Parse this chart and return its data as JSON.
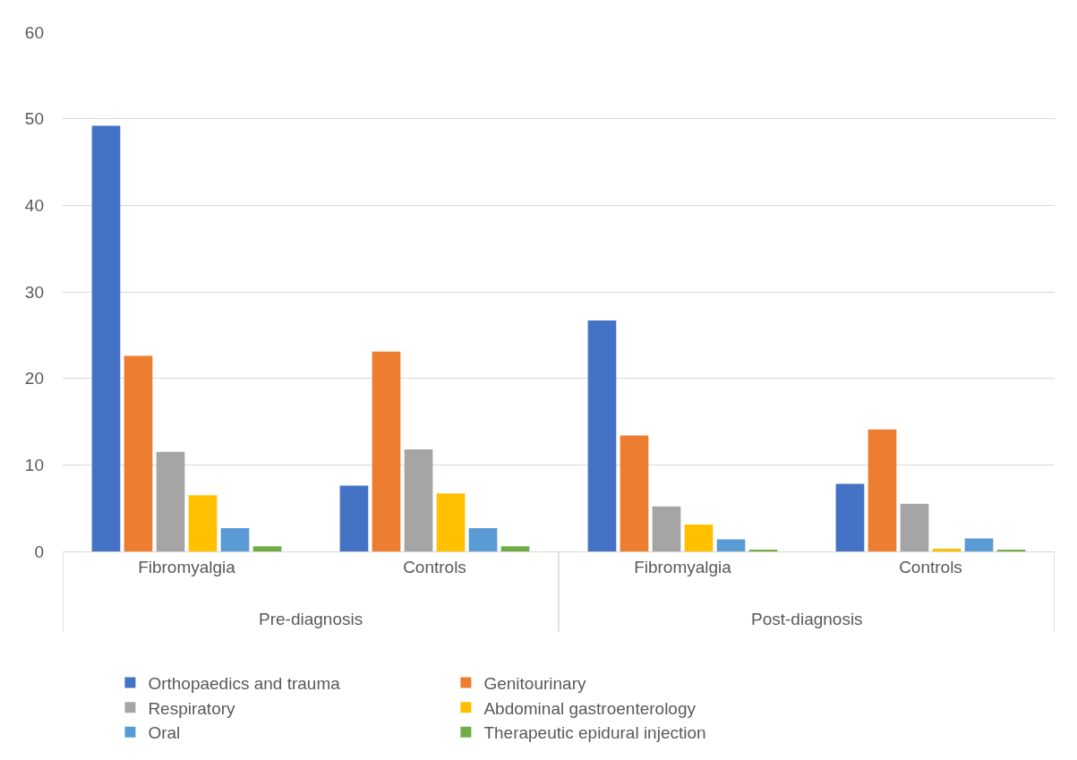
{
  "chart_data": {
    "type": "bar",
    "categories": [
      "Fibromyalgia",
      "Controls",
      "Fibromyalgia",
      "Controls"
    ],
    "series": [
      {
        "name": "Orthopaedics and trauma",
        "color": "#4472c4",
        "values": [
          49.2,
          7.6,
          26.7,
          7.8
        ]
      },
      {
        "name": "Genitourinary",
        "color": "#ed7d31",
        "values": [
          22.6,
          23.1,
          13.4,
          14.1
        ]
      },
      {
        "name": "Respiratory",
        "color": "#a5a5a5",
        "values": [
          11.5,
          11.8,
          5.2,
          5.5
        ]
      },
      {
        "name": "Abdominal gastroenterology",
        "color": "#ffc000",
        "values": [
          6.5,
          6.7,
          3.1,
          0.3
        ]
      },
      {
        "name": "Oral",
        "color": "#5b9bd5",
        "values": [
          2.7,
          2.7,
          1.4,
          1.5
        ]
      },
      {
        "name": "Therapeutic epidural injection",
        "color": "#70ad47",
        "values": [
          0.6,
          0.6,
          0.2,
          0.2
        ]
      }
    ],
    "annotations": [
      "Pre-diagnosis",
      "Post-diagnosis"
    ],
    "ylim": [
      0,
      60
    ],
    "yticks": [
      0,
      10,
      20,
      30,
      40,
      50,
      60
    ],
    "grid": "y",
    "legend": "bottom"
  }
}
